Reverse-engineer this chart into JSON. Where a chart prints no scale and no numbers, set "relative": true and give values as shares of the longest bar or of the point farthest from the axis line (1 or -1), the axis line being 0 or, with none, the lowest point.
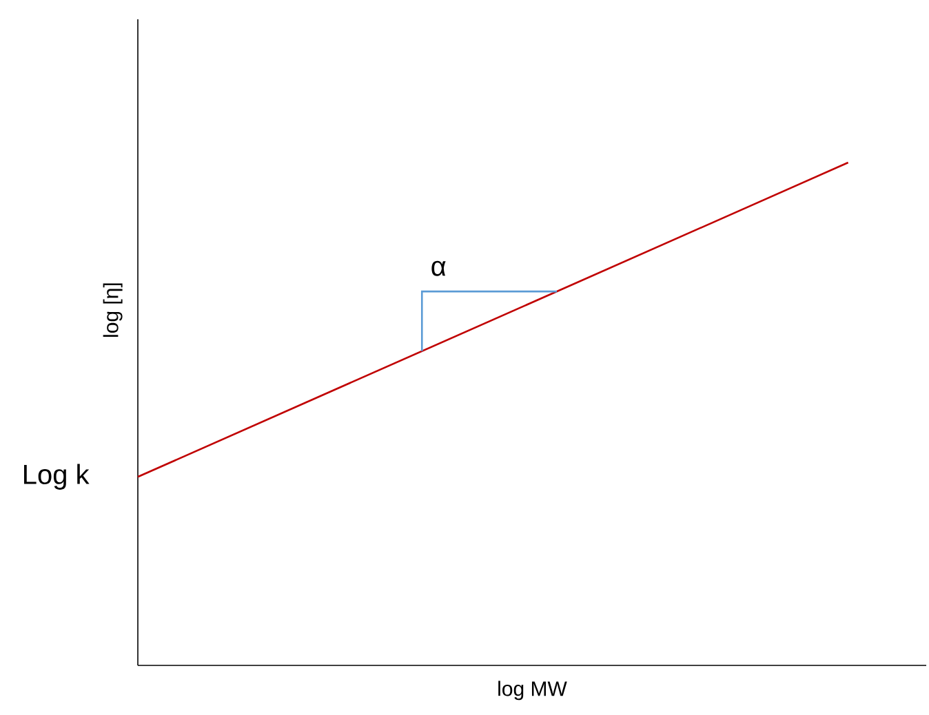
{
  "chart_data": {
    "type": "line",
    "xlabel": "log MW",
    "ylabel": "log [η]",
    "categories": [
      null,
      null
    ],
    "relative": true,
    "series": [
      {
        "color": "#c00000",
        "values": [
          0.375,
          1
        ]
      }
    ],
    "annotations": [
      "Log k",
      "α"
    ]
  }
}
